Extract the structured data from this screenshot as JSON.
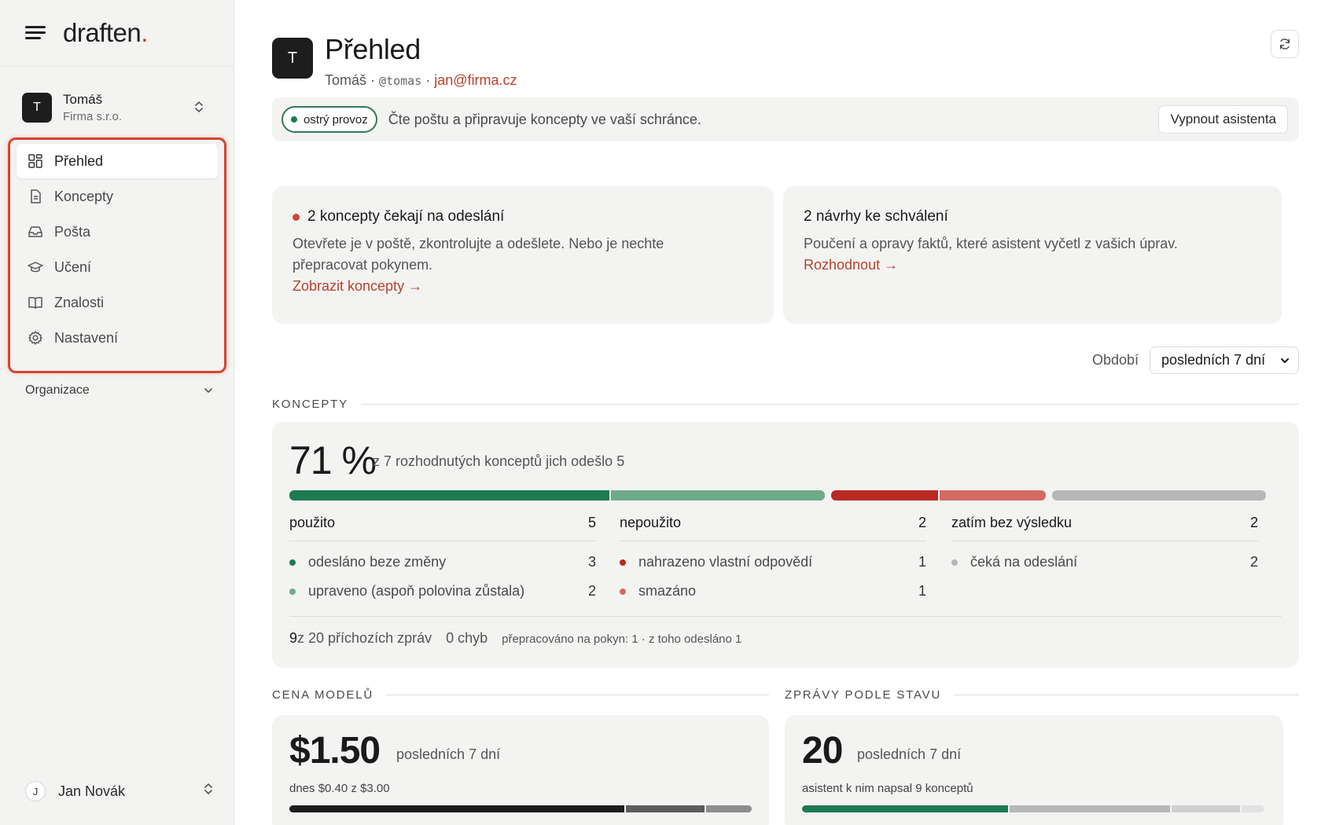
{
  "brand": {
    "name": "draften",
    "dot": "."
  },
  "account": {
    "initial": "T",
    "name": "Tomáš",
    "org": "Firma s.r.o."
  },
  "nav": [
    {
      "label": "Přehled",
      "icon": "dashboard-icon",
      "active": true
    },
    {
      "label": "Koncepty",
      "icon": "document-icon",
      "active": false
    },
    {
      "label": "Pošta",
      "icon": "inbox-icon",
      "active": false
    },
    {
      "label": "Učení",
      "icon": "graduation-cap-icon",
      "active": false
    },
    {
      "label": "Znalosti",
      "icon": "book-icon",
      "active": false
    },
    {
      "label": "Nastavení",
      "icon": "gear-icon",
      "active": false
    }
  ],
  "organization_label": "Organizace",
  "user": {
    "initial": "J",
    "name": "Jan Novák"
  },
  "header": {
    "initial": "T",
    "title": "Přehled",
    "user_name": "Tomáš",
    "separator": "·",
    "handle": "@tomas",
    "email": "jan@firma.cz"
  },
  "status": {
    "badge": "ostrý provoz",
    "text": "Čte poštu a připravuje koncepty ve vaší schránce.",
    "button": "Vypnout asistenta"
  },
  "cards": {
    "drafts": {
      "title": "2 koncepty čekají na odeslání",
      "desc": "Otevřete je v poště, zkontrolujte a odešlete. Nebo je nechte přepracovat pokynem.",
      "link": "Zobrazit koncepty →"
    },
    "proposals": {
      "title": "2 návrhy ke schválení",
      "desc": "Poučení a opravy faktů, které asistent vyčetl z vašich úprav.",
      "link": "Rozhodnout →"
    }
  },
  "period": {
    "label": "Období",
    "value": "posledních 7 dní"
  },
  "concepts": {
    "section": "KONCEPTY",
    "percent": "71 %",
    "subtitle": "z 7 rozhodnutých konceptů jich odešlo 5",
    "bar": [
      {
        "value": 3,
        "color": "#1e7a52"
      },
      {
        "value": 2,
        "color": "#6eab8a"
      },
      {
        "value": 1,
        "color": "#b92a22"
      },
      {
        "value": 1,
        "color": "#d46a63"
      },
      {
        "value": 2,
        "color": "#b7b7b9"
      }
    ],
    "columns": [
      {
        "title": "použito",
        "total": "5",
        "rows": [
          {
            "label": "odesláno beze změny",
            "value": "3",
            "color": "#1e7a52"
          },
          {
            "label": "upraveno (aspoň polovina zůstala)",
            "value": "2",
            "color": "#6eab8a"
          }
        ]
      },
      {
        "title": "nepoužito",
        "total": "2",
        "rows": [
          {
            "label": "nahrazeno vlastní odpovědí",
            "value": "1",
            "color": "#b92a22"
          },
          {
            "label": "smazáno",
            "value": "1",
            "color": "#d46a63"
          }
        ]
      },
      {
        "title": "zatím bez výsledku",
        "total": "2",
        "rows": [
          {
            "label": "čeká na odeslání",
            "value": "2",
            "color": "#b7b7b9"
          }
        ]
      }
    ],
    "footer": {
      "count": "9",
      "count_text": " z 20 příchozích zpráv",
      "errors": "0 chyb",
      "note": "přepracováno na pokyn: 1 · z toho odesláno 1"
    }
  },
  "cost": {
    "section": "CENA MODELŮ",
    "amount": "$1.50",
    "span": "posledních 7 dní",
    "detail": "dnes $0.40 z $3.00",
    "bar": [
      {
        "value": 0.73,
        "color": "#1d1d1d"
      },
      {
        "value": 0.17,
        "color": "#5c5c5c"
      },
      {
        "value": 0.1,
        "color": "#8d8d8d"
      }
    ]
  },
  "messages": {
    "section": "ZPRÁVY PODLE STAVU",
    "count": "20",
    "span": "posledních 7 dní",
    "detail": "asistent k nim napsal 9 konceptů",
    "bar": [
      {
        "value": 9,
        "color": "#1e7a52"
      },
      {
        "value": 7,
        "color": "#b7b7b9"
      },
      {
        "value": 3,
        "color": "#cfcfd1"
      },
      {
        "value": 1,
        "color": "#e2e2e3"
      }
    ]
  }
}
